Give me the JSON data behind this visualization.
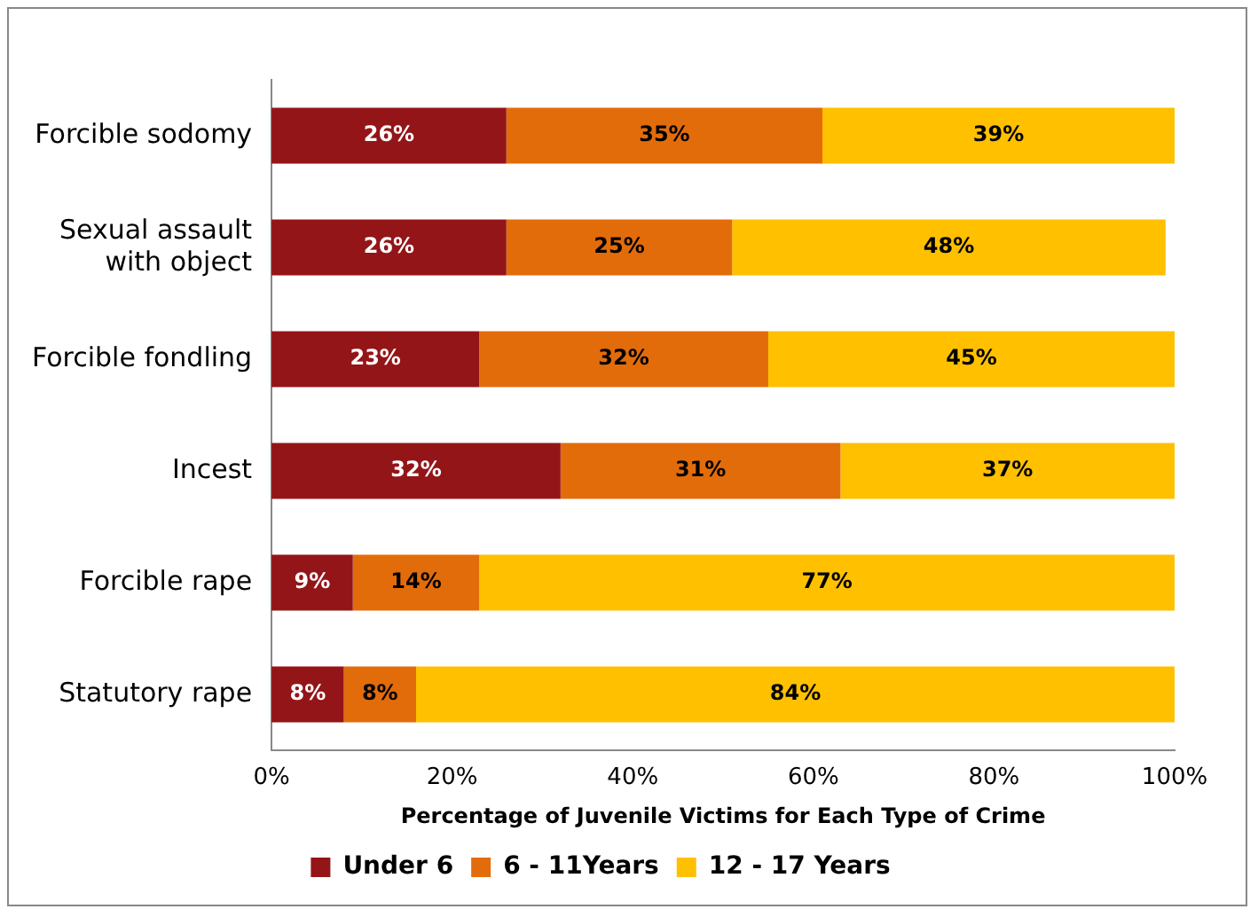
{
  "chart_data": {
    "type": "bar",
    "orientation": "horizontal",
    "stacked": true,
    "xlabel": "Percentage of Juvenile Victims for Each Type of Crime",
    "categories": [
      "Forcible sodomy",
      "Sexual assault with object",
      "Forcible fondling",
      "Incest",
      "Forcible rape",
      "Statutory rape"
    ],
    "series": [
      {
        "name": "Under 6",
        "color": "#931518",
        "values": [
          26,
          26,
          23,
          32,
          9,
          8
        ],
        "value_labels": [
          "26%",
          "26%",
          "23%",
          "32%",
          "9%",
          "8%"
        ]
      },
      {
        "name": "6 - 11Years",
        "color": "#e36c0a",
        "values": [
          35,
          25,
          32,
          31,
          14,
          8
        ],
        "value_labels": [
          "35%",
          "25%",
          "32%",
          "31%",
          "14%",
          "8%"
        ]
      },
      {
        "name": "12 - 17 Years",
        "color": "#ffc000",
        "values": [
          39,
          48,
          45,
          37,
          77,
          84
        ],
        "value_labels": [
          "39%",
          "48%",
          "45%",
          "37%",
          "77%",
          "84%"
        ]
      }
    ],
    "xlim": [
      0,
      100
    ],
    "xticks": [
      {
        "value": 0,
        "label": "0%"
      },
      {
        "value": 20,
        "label": "20%"
      },
      {
        "value": 40,
        "label": "40%"
      },
      {
        "value": 60,
        "label": "60%"
      },
      {
        "value": 80,
        "label": "80%"
      },
      {
        "value": 100,
        "label": "100%"
      }
    ],
    "grid": false,
    "legend": "bottom"
  }
}
